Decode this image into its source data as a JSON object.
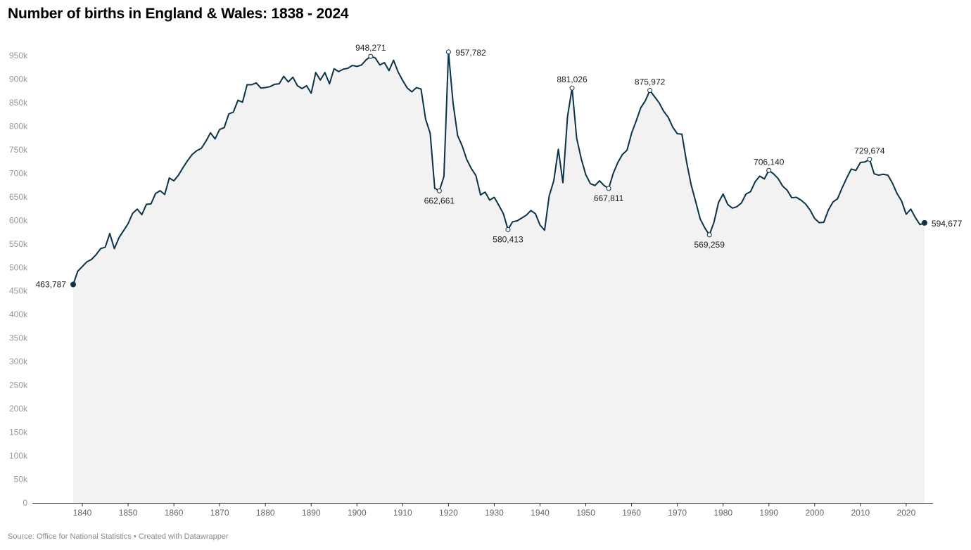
{
  "title": "Number of births in England & Wales: 1838 - 2024",
  "source": "Source: Office for National Statistics • Created with Datawrapper",
  "colors": {
    "line": "#0b3246",
    "area": "#f2f2f2",
    "axis": "#333333",
    "ytick": "#999999"
  },
  "chart_data": {
    "type": "area",
    "title": "Number of births in England & Wales: 1838 - 2024",
    "xlabel": "",
    "ylabel": "",
    "xlim": [
      1830,
      2026
    ],
    "ylim": [
      0,
      950000
    ],
    "grid": false,
    "x_ticks": [
      1840,
      1850,
      1860,
      1870,
      1880,
      1890,
      1900,
      1910,
      1920,
      1930,
      1940,
      1950,
      1960,
      1970,
      1980,
      1990,
      2000,
      2010,
      2020
    ],
    "y_ticks": [
      {
        "v": 0,
        "label": "0"
      },
      {
        "v": 50000,
        "label": "50k"
      },
      {
        "v": 100000,
        "label": "100k"
      },
      {
        "v": 150000,
        "label": "150k"
      },
      {
        "v": 200000,
        "label": "200k"
      },
      {
        "v": 250000,
        "label": "250k"
      },
      {
        "v": 300000,
        "label": "300k"
      },
      {
        "v": 350000,
        "label": "350k"
      },
      {
        "v": 400000,
        "label": "400k"
      },
      {
        "v": 450000,
        "label": "450k"
      },
      {
        "v": 500000,
        "label": "500k"
      },
      {
        "v": 550000,
        "label": "550k"
      },
      {
        "v": 600000,
        "label": "600k"
      },
      {
        "v": 650000,
        "label": "650k"
      },
      {
        "v": 700000,
        "label": "700k"
      },
      {
        "v": 750000,
        "label": "750k"
      },
      {
        "v": 800000,
        "label": "800k"
      },
      {
        "v": 850000,
        "label": "850k"
      },
      {
        "v": 900000,
        "label": "900k"
      },
      {
        "v": 950000,
        "label": "950k"
      }
    ],
    "series": [
      {
        "points": [
          [
            1838,
            463787
          ],
          [
            1839,
            492000
          ],
          [
            1840,
            502000
          ],
          [
            1841,
            512000
          ],
          [
            1842,
            517000
          ],
          [
            1843,
            527000
          ],
          [
            1844,
            540000
          ],
          [
            1845,
            543000
          ],
          [
            1846,
            572000
          ],
          [
            1847,
            540000
          ],
          [
            1848,
            563000
          ],
          [
            1849,
            578000
          ],
          [
            1850,
            593000
          ],
          [
            1851,
            615000
          ],
          [
            1852,
            624000
          ],
          [
            1853,
            612000
          ],
          [
            1854,
            634000
          ],
          [
            1855,
            635000
          ],
          [
            1856,
            657000
          ],
          [
            1857,
            663000
          ],
          [
            1858,
            655000
          ],
          [
            1859,
            690000
          ],
          [
            1860,
            684000
          ],
          [
            1861,
            696000
          ],
          [
            1862,
            712000
          ],
          [
            1863,
            727000
          ],
          [
            1864,
            740000
          ],
          [
            1865,
            748000
          ],
          [
            1866,
            753000
          ],
          [
            1867,
            768000
          ],
          [
            1868,
            786000
          ],
          [
            1869,
            773000
          ],
          [
            1870,
            793000
          ],
          [
            1871,
            797000
          ],
          [
            1872,
            826000
          ],
          [
            1873,
            830000
          ],
          [
            1874,
            855000
          ],
          [
            1875,
            851000
          ],
          [
            1876,
            888000
          ],
          [
            1877,
            888000
          ],
          [
            1878,
            892000
          ],
          [
            1879,
            881000
          ],
          [
            1880,
            882000
          ],
          [
            1881,
            884000
          ],
          [
            1882,
            889000
          ],
          [
            1883,
            890000
          ],
          [
            1884,
            906000
          ],
          [
            1885,
            894000
          ],
          [
            1886,
            904000
          ],
          [
            1887,
            886000
          ],
          [
            1888,
            880000
          ],
          [
            1889,
            886000
          ],
          [
            1890,
            870000
          ],
          [
            1891,
            914000
          ],
          [
            1892,
            898000
          ],
          [
            1893,
            914000
          ],
          [
            1894,
            890000
          ],
          [
            1895,
            922000
          ],
          [
            1896,
            916000
          ],
          [
            1897,
            921000
          ],
          [
            1898,
            923000
          ],
          [
            1899,
            929000
          ],
          [
            1900,
            927000
          ],
          [
            1901,
            930000
          ],
          [
            1902,
            941000
          ],
          [
            1903,
            948271
          ],
          [
            1904,
            945000
          ],
          [
            1905,
            930000
          ],
          [
            1906,
            935000
          ],
          [
            1907,
            918000
          ],
          [
            1908,
            940000
          ],
          [
            1909,
            915000
          ],
          [
            1910,
            897000
          ],
          [
            1911,
            881000
          ],
          [
            1912,
            873000
          ],
          [
            1913,
            882000
          ],
          [
            1914,
            879000
          ],
          [
            1915,
            815000
          ],
          [
            1916,
            785000
          ],
          [
            1917,
            668000
          ],
          [
            1918,
            662661
          ],
          [
            1919,
            693000
          ],
          [
            1920,
            957782
          ],
          [
            1921,
            849000
          ],
          [
            1922,
            780000
          ],
          [
            1923,
            758000
          ],
          [
            1924,
            729000
          ],
          [
            1925,
            710000
          ],
          [
            1926,
            695000
          ],
          [
            1927,
            654000
          ],
          [
            1928,
            660000
          ],
          [
            1929,
            643000
          ],
          [
            1930,
            649000
          ],
          [
            1931,
            632000
          ],
          [
            1932,
            614000
          ],
          [
            1933,
            580413
          ],
          [
            1934,
            597000
          ],
          [
            1935,
            599000
          ],
          [
            1936,
            605000
          ],
          [
            1937,
            611000
          ],
          [
            1938,
            621000
          ],
          [
            1939,
            614000
          ],
          [
            1940,
            590000
          ],
          [
            1941,
            579000
          ],
          [
            1942,
            652000
          ],
          [
            1943,
            684000
          ],
          [
            1944,
            751000
          ],
          [
            1945,
            680000
          ],
          [
            1946,
            820000
          ],
          [
            1947,
            881026
          ],
          [
            1948,
            775000
          ],
          [
            1949,
            731000
          ],
          [
            1950,
            697000
          ],
          [
            1951,
            678000
          ],
          [
            1952,
            674000
          ],
          [
            1953,
            684000
          ],
          [
            1954,
            674000
          ],
          [
            1955,
            667811
          ],
          [
            1956,
            700000
          ],
          [
            1957,
            723000
          ],
          [
            1958,
            740000
          ],
          [
            1959,
            749000
          ],
          [
            1960,
            785000
          ],
          [
            1961,
            811000
          ],
          [
            1962,
            839000
          ],
          [
            1963,
            854000
          ],
          [
            1964,
            875972
          ],
          [
            1965,
            863000
          ],
          [
            1966,
            850000
          ],
          [
            1967,
            832000
          ],
          [
            1968,
            819000
          ],
          [
            1969,
            798000
          ],
          [
            1970,
            784000
          ],
          [
            1971,
            783000
          ],
          [
            1972,
            725000
          ],
          [
            1973,
            676000
          ],
          [
            1974,
            640000
          ],
          [
            1975,
            603000
          ],
          [
            1976,
            584000
          ],
          [
            1977,
            569259
          ],
          [
            1978,
            596000
          ],
          [
            1979,
            638000
          ],
          [
            1980,
            656000
          ],
          [
            1981,
            634000
          ],
          [
            1982,
            626000
          ],
          [
            1983,
            629000
          ],
          [
            1984,
            637000
          ],
          [
            1985,
            656000
          ],
          [
            1986,
            661000
          ],
          [
            1987,
            682000
          ],
          [
            1988,
            694000
          ],
          [
            1989,
            688000
          ],
          [
            1990,
            706140
          ],
          [
            1991,
            699000
          ],
          [
            1992,
            689000
          ],
          [
            1993,
            673000
          ],
          [
            1994,
            664000
          ],
          [
            1995,
            648000
          ],
          [
            1996,
            649000
          ],
          [
            1997,
            643000
          ],
          [
            1998,
            635000
          ],
          [
            1999,
            622000
          ],
          [
            2000,
            604000
          ],
          [
            2001,
            595000
          ],
          [
            2002,
            596000
          ],
          [
            2003,
            622000
          ],
          [
            2004,
            639000
          ],
          [
            2005,
            646000
          ],
          [
            2006,
            669000
          ],
          [
            2007,
            690000
          ],
          [
            2008,
            709000
          ],
          [
            2009,
            706000
          ],
          [
            2010,
            723000
          ],
          [
            2011,
            724000
          ],
          [
            2012,
            729674
          ],
          [
            2013,
            699000
          ],
          [
            2014,
            696000
          ],
          [
            2015,
            698000
          ],
          [
            2016,
            696000
          ],
          [
            2017,
            679000
          ],
          [
            2018,
            657000
          ],
          [
            2019,
            641000
          ],
          [
            2020,
            613000
          ],
          [
            2021,
            624000
          ],
          [
            2022,
            606000
          ],
          [
            2023,
            591000
          ],
          [
            2024,
            594677
          ]
        ]
      }
    ],
    "annotations": [
      {
        "x": 1838,
        "y": 463787,
        "label": "463,787",
        "pos": "left",
        "filled": true
      },
      {
        "x": 1903,
        "y": 948271,
        "label": "948,271",
        "pos": "above",
        "filled": false
      },
      {
        "x": 1918,
        "y": 662661,
        "label": "662,661",
        "pos": "below",
        "filled": false
      },
      {
        "x": 1920,
        "y": 957782,
        "label": "957,782",
        "pos": "right",
        "filled": false
      },
      {
        "x": 1933,
        "y": 580413,
        "label": "580,413",
        "pos": "below",
        "filled": false
      },
      {
        "x": 1947,
        "y": 881026,
        "label": "881,026",
        "pos": "above",
        "filled": false
      },
      {
        "x": 1955,
        "y": 667811,
        "label": "667,811",
        "pos": "below",
        "filled": false
      },
      {
        "x": 1964,
        "y": 875972,
        "label": "875,972",
        "pos": "above",
        "filled": false
      },
      {
        "x": 1977,
        "y": 569259,
        "label": "569,259",
        "pos": "below",
        "filled": false
      },
      {
        "x": 1990,
        "y": 706140,
        "label": "706,140",
        "pos": "above",
        "filled": false
      },
      {
        "x": 2012,
        "y": 729674,
        "label": "729,674",
        "pos": "above",
        "filled": false
      },
      {
        "x": 2024,
        "y": 594677,
        "label": "594,677",
        "pos": "right",
        "filled": true
      }
    ]
  }
}
